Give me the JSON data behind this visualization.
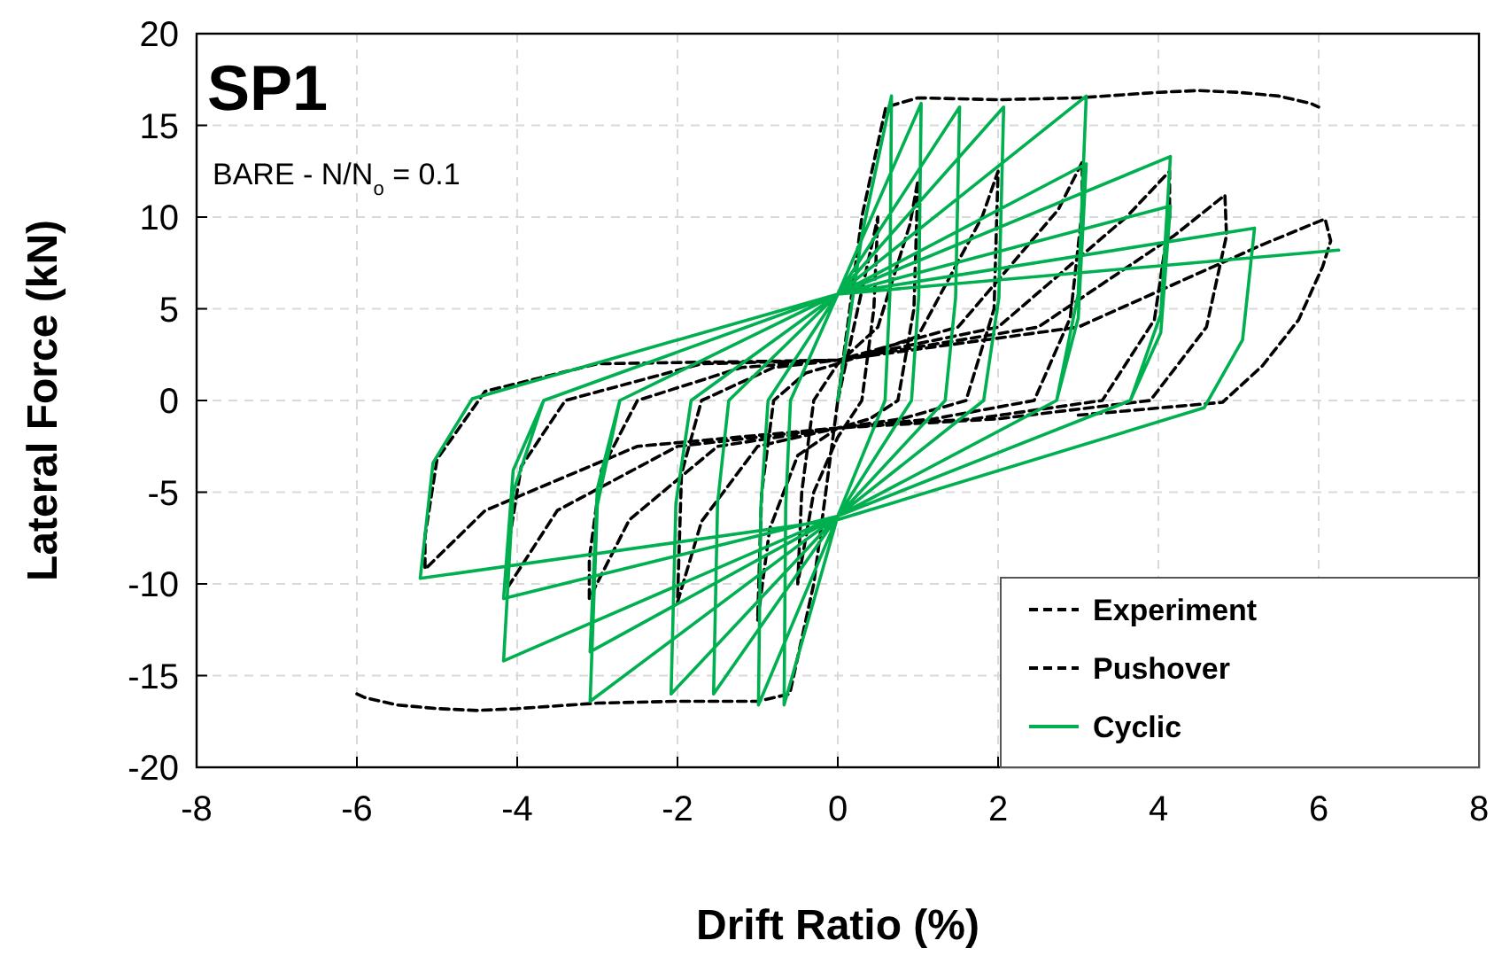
{
  "chart_data": {
    "type": "line",
    "title": "SP1",
    "xlabel": "Drift Ratio (%)",
    "ylabel": "Lateral Force (kN)",
    "annotations": [
      "BARE - N/N$_{o}$ = 0.1"
    ],
    "xlim": [
      -8,
      8
    ],
    "ylim": [
      -20,
      20
    ],
    "xticks": [
      -8,
      -6,
      -4,
      -2,
      0,
      2,
      4,
      6,
      8
    ],
    "yticks": [
      -20,
      -15,
      -10,
      -5,
      0,
      5,
      10,
      15,
      20
    ],
    "grid": true,
    "legend": "bottom right",
    "marker": "none",
    "series": [
      {
        "name": "Experiment",
        "color": "#000000",
        "line_style": "dashed",
        "x": [
          0,
          0.3,
          0.5,
          0.45,
          0.3,
          0,
          -0.3,
          -0.5,
          -0.45,
          -0.3,
          0,
          0.5,
          0.9,
          1.0,
          0.95,
          0.75,
          0.4,
          0,
          -0.5,
          -0.85,
          -1.0,
          -0.95,
          -0.8,
          -0.4,
          0,
          1.0,
          1.8,
          2.0,
          1.95,
          1.6,
          0.8,
          0,
          -1.0,
          -1.7,
          -2.0,
          -1.95,
          -1.7,
          -0.8,
          0,
          1.5,
          2.75,
          3.05,
          3.05,
          2.9,
          2.45,
          1.2,
          0,
          -1.5,
          -2.6,
          -3.1,
          -3.1,
          -2.95,
          -2.5,
          -1.2,
          0,
          2,
          3.6,
          4.14,
          4.14,
          3.95,
          3.3,
          1.7,
          0,
          -2,
          -3.5,
          -4.12,
          -4.12,
          -3.95,
          -3.4,
          -1.7,
          0,
          2.5,
          4.2,
          4.83,
          4.85,
          4.6,
          3.9,
          2,
          0,
          -2.5,
          -4.4,
          -5.15,
          -5.15,
          -5.0,
          -4.4,
          -3,
          0,
          3,
          5.3,
          6.08,
          6.15,
          6.05,
          5.75,
          5.3,
          4.8,
          3
        ],
        "values": [
          0,
          6,
          10,
          5,
          0,
          -2,
          -5,
          -10,
          -5,
          0,
          2,
          4,
          9.6,
          12,
          5,
          0,
          -1,
          -1.5,
          -3,
          -7,
          -12,
          -5,
          0,
          1.5,
          2,
          3.5,
          10,
          12.5,
          5,
          0,
          -1,
          -1.5,
          -2.5,
          -6.6,
          -11,
          -4,
          0,
          1.8,
          2.2,
          4,
          10.4,
          13,
          10.4,
          4.5,
          0,
          -1,
          -1.5,
          -2.5,
          -6.5,
          -10.8,
          -8.6,
          -3.8,
          0,
          1.8,
          2.2,
          4,
          10,
          12.5,
          10,
          4.4,
          0,
          -1,
          -1.5,
          -2.5,
          -6,
          -10.2,
          -8.2,
          -3.6,
          0,
          2,
          2.2,
          4,
          9,
          11.2,
          9,
          4,
          0,
          -1,
          -1.5,
          -2.5,
          -6,
          -9.2,
          -7.4,
          -3.2,
          0.5,
          2,
          2.2,
          4,
          8.5,
          9.9,
          8.7,
          7.3,
          4.4,
          1.9,
          -0.1,
          -0.8
        ]
      },
      {
        "name": "Pushover",
        "color": "#000000",
        "line_style": "dashed",
        "x": [
          -6,
          -5.9,
          -5.5,
          -5,
          -4.5,
          -4,
          -3,
          -2,
          -1,
          -0.6,
          -0.3,
          0,
          0.3,
          0.6,
          1,
          2,
          3,
          4,
          4.5,
          5,
          5.5,
          5.9,
          6
        ],
        "values": [
          -16,
          -16.2,
          -16.6,
          -16.8,
          -16.9,
          -16.8,
          -16.5,
          -16.4,
          -16.4,
          -16,
          -10,
          0,
          10,
          16,
          16.5,
          16.4,
          16.5,
          16.8,
          16.9,
          16.8,
          16.6,
          16.2,
          16
        ]
      },
      {
        "name": "Cyclic",
        "color": "#00b050",
        "line_style": "solid",
        "x": [
          0,
          0.3,
          0.67,
          0.65,
          0.59,
          0,
          -0.67,
          -0.65,
          -0.59,
          0,
          1.04,
          1.01,
          0.92,
          0,
          -0.99,
          -0.96,
          -0.87,
          0,
          1.52,
          1.47,
          1.34,
          0,
          -1.55,
          -1.5,
          -1.36,
          0,
          2.07,
          2.01,
          1.82,
          0,
          -2.08,
          -2.02,
          -1.83,
          0,
          3.1,
          3.0,
          2.73,
          0,
          -3.09,
          -3.0,
          -2.72,
          0,
          3.1,
          3.0,
          2.73,
          0,
          -3.09,
          -3.0,
          -2.72,
          0,
          4.15,
          4.03,
          3.65,
          0,
          -4.17,
          -4.05,
          -3.67,
          0,
          4.15,
          4.03,
          3.65,
          0,
          -4.17,
          -4.05,
          -3.67,
          0,
          5.2,
          5.05,
          4.57,
          0,
          -5.21,
          -5.05,
          -4.56,
          0,
          6.25
        ],
        "values": [
          0,
          9,
          16.6,
          5.8,
          0,
          -6.3,
          -16.6,
          -5.8,
          0,
          5.8,
          16.2,
          5.7,
          0,
          -6.3,
          -16.6,
          -5.8,
          0,
          5.8,
          16.0,
          5.6,
          0,
          -6.3,
          -16.0,
          -5.6,
          0,
          5.8,
          16.0,
          5.6,
          0,
          -6.3,
          -16.0,
          -5.6,
          0,
          5.8,
          16.6,
          5.8,
          0,
          -6.3,
          -16.4,
          -5.7,
          0,
          5.8,
          12.9,
          4.5,
          0,
          -6.3,
          -13.7,
          -4.8,
          0,
          5.8,
          13.3,
          4.7,
          0,
          -6.3,
          -14.2,
          -5,
          0,
          5.8,
          10.6,
          3.7,
          0,
          -6.3,
          -10.8,
          -3.8,
          0,
          5.8,
          9.4,
          3.3,
          -0.4,
          -6.5,
          -9.7,
          -3.4,
          0.1,
          5.8,
          8.2
        ]
      }
    ]
  }
}
